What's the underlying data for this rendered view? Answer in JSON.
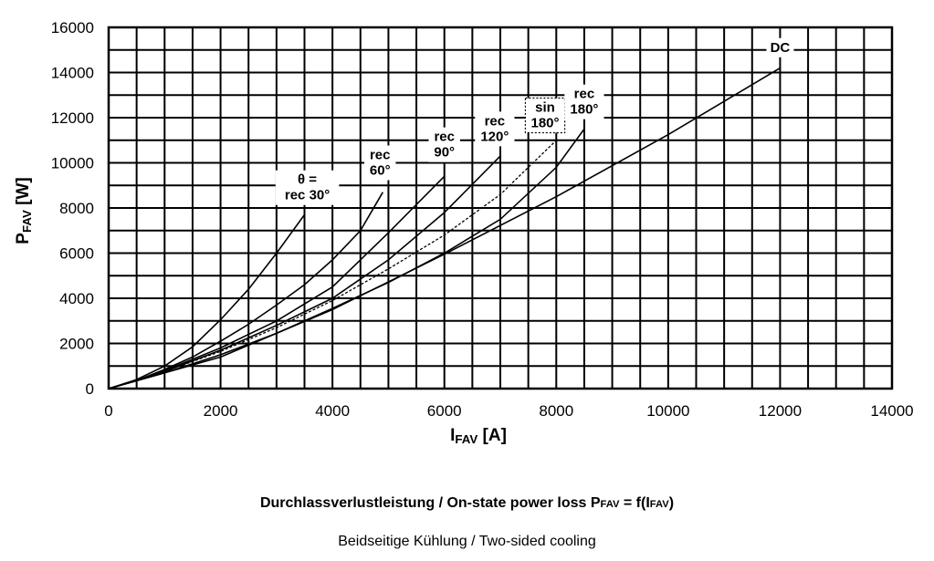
{
  "chart_data": {
    "type": "line",
    "xlabel": {
      "main": "I",
      "sub": "FAV",
      "unit": " [A]"
    },
    "ylabel": {
      "main": "P",
      "sub": "FAV",
      "unit": " [W]"
    },
    "xlim": [
      0,
      14000
    ],
    "ylim": [
      0,
      16000
    ],
    "x_ticks": [
      "0",
      "2000",
      "4000",
      "6000",
      "8000",
      "10000",
      "12000",
      "14000"
    ],
    "y_ticks": [
      "0",
      "2000",
      "4000",
      "6000",
      "8000",
      "10000",
      "12000",
      "14000",
      "16000"
    ],
    "grid": true,
    "series": [
      {
        "name": "θ = rec 30°",
        "label_lines": [
          "θ =",
          "rec 30°"
        ],
        "dashed": false,
        "label_at": [
          3550,
          8900
        ],
        "x": [
          0,
          500,
          1000,
          1500,
          2000,
          2500,
          3000,
          3500
        ],
        "y": [
          0,
          400,
          1000,
          1850,
          3050,
          4400,
          6000,
          7700
        ]
      },
      {
        "name": "rec 60°",
        "label_lines": [
          "rec",
          "60°"
        ],
        "dashed": false,
        "label_at": [
          4850,
          10000
        ],
        "x": [
          0,
          500,
          1000,
          1500,
          2000,
          2500,
          3000,
          3500,
          4000,
          4500,
          4900
        ],
        "y": [
          0,
          350,
          850,
          1400,
          2100,
          2850,
          3700,
          4600,
          5700,
          7000,
          8700
        ]
      },
      {
        "name": "rec 90°",
        "label_lines": [
          "rec",
          "90°"
        ],
        "dashed": false,
        "label_at": [
          6000,
          10800
        ],
        "x": [
          0,
          500,
          1000,
          2000,
          3000,
          4000,
          5000,
          6000
        ],
        "y": [
          0,
          350,
          800,
          1800,
          3000,
          4500,
          6900,
          9400
        ]
      },
      {
        "name": "rec 120°",
        "label_lines": [
          "rec",
          "120°"
        ],
        "dashed": false,
        "label_at": [
          6900,
          11500
        ],
        "x": [
          0,
          500,
          1000,
          2000,
          3000,
          4000,
          5000,
          6000,
          7000
        ],
        "y": [
          0,
          350,
          750,
          1700,
          2800,
          4000,
          5700,
          7800,
          10300
        ]
      },
      {
        "name": "sin 180°",
        "label_lines": [
          "sin",
          "180°"
        ],
        "dashed": true,
        "boxed": true,
        "label_at": [
          7800,
          12100
        ],
        "x": [
          0,
          500,
          1000,
          2000,
          3000,
          4000,
          5000,
          6000,
          7000,
          8000
        ],
        "y": [
          0,
          350,
          750,
          1650,
          2700,
          3900,
          5300,
          6800,
          8600,
          11000
        ]
      },
      {
        "name": "rec 180°",
        "label_lines": [
          "rec",
          "180°"
        ],
        "dashed": false,
        "label_at": [
          8500,
          12700
        ],
        "x": [
          0,
          500,
          1000,
          2000,
          3000,
          4000,
          5000,
          6000,
          7000,
          8000,
          8500
        ],
        "y": [
          0,
          350,
          700,
          1500,
          2450,
          3550,
          4700,
          6000,
          7500,
          9800,
          11500
        ]
      },
      {
        "name": "DC",
        "label_lines": [
          "DC"
        ],
        "dashed": false,
        "label_at": [
          12000,
          15100
        ],
        "x": [
          0,
          500,
          1000,
          2000,
          4000,
          6000,
          8000,
          10000,
          12000
        ],
        "y": [
          0,
          350,
          700,
          1400,
          3500,
          5950,
          8500,
          11250,
          14200
        ]
      }
    ]
  },
  "captions": {
    "main_prefix": "Durchlassverlustleistung / On-state power loss P",
    "main_sub1": "FAV",
    "main_mid": " = f(I",
    "main_sub2": "FAV",
    "main_suffix": ")",
    "sub": "Beidseitige Kühlung / Two-sided cooling"
  }
}
